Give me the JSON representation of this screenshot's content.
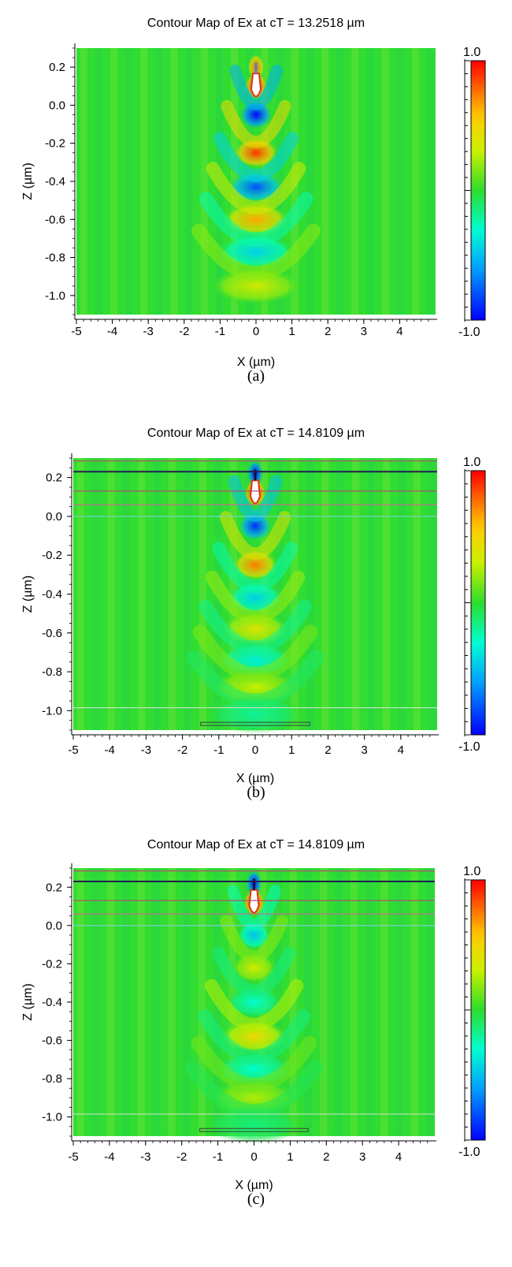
{
  "panels": [
    {
      "title": "Contour Map of Ex at cT = 13.2518 µm",
      "caption": "(a)",
      "show_layers": false
    },
    {
      "title": "Contour Map of Ex at cT = 14.8109 µm",
      "caption": "(b)",
      "show_layers": true
    },
    {
      "title": "Contour Map of Ex at cT = 14.8109 µm",
      "caption": "(c)",
      "show_layers": true
    }
  ],
  "chart_data": [
    {
      "type": "heatmap",
      "title": "Contour Map of Ex at cT = 13.2518 µm",
      "xlabel": "X (µm)",
      "ylabel": "Z (µm)",
      "xlim": [
        -5,
        5
      ],
      "ylim": [
        -1.1,
        0.3
      ],
      "x_ticks": [
        "-5",
        "-4",
        "-3",
        "-2",
        "-1",
        "0",
        "1",
        "2",
        "3",
        "4"
      ],
      "y_ticks": [
        "0.2",
        "0.0",
        "-0.2",
        "-0.4",
        "-0.6",
        "-0.8",
        "-1.0"
      ],
      "x_tick_values": [
        -5,
        -4,
        -3,
        -2,
        -1,
        0,
        1,
        2,
        3,
        4
      ],
      "y_tick_values": [
        0.2,
        0.0,
        -0.2,
        -0.4,
        -0.6,
        -0.8,
        -1.0
      ],
      "colorbar": {
        "min": -1.0,
        "max": 1.0,
        "min_label": "-1.0",
        "max_label": "1.0"
      },
      "peak_lobes_z": [
        0.2,
        0.1,
        -0.05,
        -0.25,
        -0.43,
        -0.6,
        -0.77,
        -0.95
      ],
      "peak_lobes_value": [
        0.8,
        1.0,
        -1.0,
        0.9,
        -0.8,
        0.65,
        -0.45,
        0.35
      ]
    },
    {
      "type": "heatmap",
      "title": "Contour Map of Ex at cT = 14.8109 µm",
      "xlabel": "X (µm)",
      "ylabel": "Z (µm)",
      "xlim": [
        -5,
        5
      ],
      "ylim": [
        -1.1,
        0.3
      ],
      "x_ticks": [
        "-5",
        "-4",
        "-3",
        "-2",
        "-1",
        "0",
        "1",
        "2",
        "3",
        "4"
      ],
      "y_ticks": [
        "0.2",
        "0.0",
        "-0.2",
        "-0.4",
        "-0.6",
        "-0.8",
        "-1.0"
      ],
      "x_tick_values": [
        -5,
        -4,
        -3,
        -2,
        -1,
        0,
        1,
        2,
        3,
        4
      ],
      "y_tick_values": [
        0.2,
        0.0,
        -0.2,
        -0.4,
        -0.6,
        -0.8,
        -1.0
      ],
      "colorbar": {
        "min": -1.0,
        "max": 1.0,
        "min_label": "-1.0",
        "max_label": "1.0"
      },
      "layer_lines_z": [
        0.285,
        0.23,
        0.13,
        0.06,
        0.0,
        -0.985
      ],
      "layer_line_colors": [
        "#b05070",
        "#202050",
        "#b05070",
        "#c07090",
        "#80d0d0",
        "#c0e0c0"
      ],
      "bottom_box": {
        "x": [
          -1.5,
          1.5
        ],
        "z": [
          -1.075,
          -1.06
        ]
      },
      "peak_lobes_z": [
        0.22,
        0.12,
        -0.05,
        -0.25,
        -0.42,
        -0.58,
        -0.74,
        -0.88,
        -1.02
      ],
      "peak_lobes_value": [
        -1.0,
        1.0,
        -0.9,
        0.75,
        -0.45,
        0.4,
        -0.35,
        0.3,
        -0.2
      ]
    },
    {
      "type": "heatmap",
      "title": "Contour Map of Ex at cT = 14.8109 µm",
      "xlabel": "X (µm)",
      "ylabel": "Z (µm)",
      "xlim": [
        -5,
        5
      ],
      "ylim": [
        -1.1,
        0.3
      ],
      "x_ticks": [
        "-5",
        "-4",
        "-3",
        "-2",
        "-1",
        "0",
        "1",
        "2",
        "3",
        "4"
      ],
      "y_ticks": [
        "0.2",
        "0.0",
        "-0.2",
        "-0.4",
        "-0.6",
        "-0.8",
        "-1.0"
      ],
      "x_tick_values": [
        -5,
        -4,
        -3,
        -2,
        -1,
        0,
        1,
        2,
        3,
        4
      ],
      "y_tick_values": [
        0.2,
        0.0,
        -0.2,
        -0.4,
        -0.6,
        -0.8,
        -1.0
      ],
      "colorbar": {
        "min": -1.0,
        "max": 1.0,
        "min_label": "-1.0",
        "max_label": "1.0"
      },
      "layer_lines_z": [
        0.285,
        0.23,
        0.13,
        0.06,
        0.0,
        -0.985
      ],
      "layer_line_colors": [
        "#b05070",
        "#202050",
        "#b05070",
        "#c07090",
        "#80d0d0",
        "#c0e0c0"
      ],
      "bottom_box": {
        "x": [
          -1.5,
          1.5
        ],
        "z": [
          -1.075,
          -1.06
        ]
      },
      "peak_lobes_z": [
        0.22,
        0.12,
        -0.05,
        -0.22,
        -0.4,
        -0.58,
        -0.75,
        -0.9,
        -1.04
      ],
      "peak_lobes_value": [
        -1.0,
        1.0,
        -0.5,
        0.35,
        -0.3,
        0.5,
        -0.3,
        0.25,
        -0.15
      ]
    }
  ]
}
